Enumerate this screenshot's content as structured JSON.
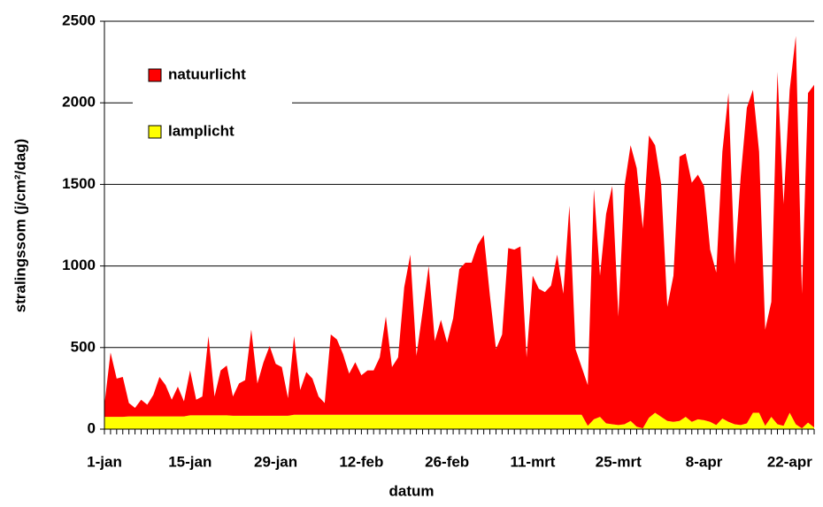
{
  "chart_data": {
    "type": "stacked-area",
    "x_label": "datum",
    "y_label": "stralingssom (j/cm²/dag)",
    "categories": [
      "1-jan",
      null,
      null,
      null,
      null,
      null,
      null,
      null,
      null,
      null,
      null,
      null,
      null,
      null,
      "15-jan",
      null,
      null,
      null,
      null,
      null,
      null,
      null,
      null,
      null,
      null,
      null,
      null,
      null,
      "29-jan",
      null,
      null,
      null,
      null,
      null,
      null,
      null,
      null,
      null,
      null,
      null,
      null,
      null,
      "12-feb",
      null,
      null,
      null,
      null,
      null,
      null,
      null,
      null,
      null,
      null,
      null,
      null,
      null,
      "26-feb",
      null,
      null,
      null,
      null,
      null,
      null,
      null,
      null,
      null,
      null,
      null,
      null,
      null,
      "11-mrt",
      null,
      null,
      null,
      null,
      null,
      null,
      null,
      null,
      null,
      null,
      null,
      null,
      null,
      "25-mrt",
      null,
      null,
      null,
      null,
      null,
      null,
      null,
      null,
      null,
      null,
      null,
      null,
      null,
      "8-apr",
      null,
      null,
      null,
      null,
      null,
      null,
      null,
      null,
      null,
      null,
      null,
      null,
      null,
      "22-apr",
      null,
      null,
      null,
      null
    ],
    "series": [
      {
        "name": "lamplicht",
        "color": "#ffff00",
        "values": [
          75,
          75,
          75,
          75,
          78,
          78,
          78,
          78,
          78,
          78,
          78,
          78,
          78,
          78,
          85,
          85,
          85,
          85,
          85,
          85,
          85,
          82,
          82,
          82,
          82,
          82,
          82,
          82,
          82,
          82,
          82,
          88,
          88,
          88,
          88,
          88,
          88,
          88,
          88,
          88,
          88,
          88,
          88,
          88,
          88,
          88,
          88,
          88,
          88,
          88,
          88,
          88,
          88,
          88,
          88,
          88,
          88,
          88,
          88,
          88,
          88,
          88,
          88,
          88,
          88,
          88,
          88,
          88,
          88,
          88,
          88,
          88,
          88,
          88,
          88,
          88,
          88,
          88,
          88,
          20,
          60,
          75,
          35,
          30,
          25,
          30,
          50,
          15,
          5,
          70,
          100,
          75,
          50,
          45,
          50,
          75,
          45,
          60,
          55,
          45,
          25,
          65,
          45,
          30,
          25,
          35,
          100,
          100,
          20,
          75,
          30,
          20,
          100,
          30,
          5,
          40,
          10
        ]
      },
      {
        "name": "natuurlicht",
        "color": "#ff0000",
        "values": [
          75,
          395,
          235,
          245,
          82,
          52,
          102,
          72,
          132,
          242,
          192,
          102,
          182,
          92,
          275,
          95,
          115,
          485,
          115,
          275,
          305,
          118,
          198,
          218,
          528,
          198,
          328,
          428,
          318,
          298,
          108,
          482,
          152,
          262,
          222,
          112,
          72,
          492,
          462,
          372,
          252,
          322,
          242,
          272,
          272,
          352,
          602,
          292,
          352,
          782,
          982,
          362,
          632,
          912,
          452,
          582,
          442,
          592,
          892,
          932,
          932,
          1042,
          1102,
          732,
          402,
          492,
          1022,
          1012,
          1032,
          352,
          852,
          772,
          752,
          792,
          982,
          742,
          1282,
          402,
          292,
          250,
          1410,
          865,
          1285,
          1460,
          665,
          1460,
          1690,
          1585,
          1225,
          1730,
          1640,
          1425,
          700,
          895,
          1620,
          1615,
          1465,
          1500,
          1435,
          1055,
          935,
          1635,
          2015,
          980,
          1525,
          1935,
          1980,
          1600,
          590,
          705,
          2160,
          1360,
          1980,
          2380,
          825,
          2020,
          2100
        ]
      }
    ],
    "ylim": [
      0,
      2500
    ],
    "yticks": [
      0,
      500,
      1000,
      1500,
      2000,
      2500
    ],
    "grid": true,
    "legend": "top-left"
  }
}
